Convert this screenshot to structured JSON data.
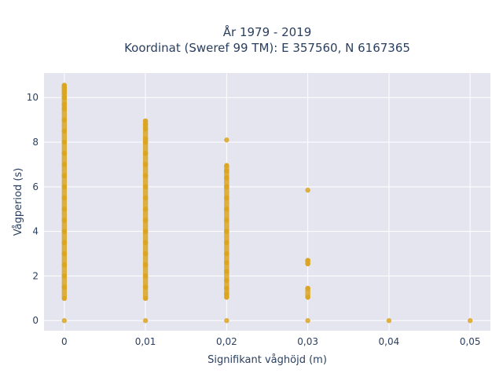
{
  "chart_data": {
    "type": "scatter",
    "title": "År 1979 - 2019",
    "subtitle": "Koordinat (Sweref 99 TM): E 357560, N 6167365",
    "xlabel": "Signifikant våghöjd (m)",
    "ylabel": "Vågperiod (s)",
    "xlim": [
      -0.0025,
      0.0525
    ],
    "ylim": [
      -0.45,
      11.1
    ],
    "x_ticks": [
      0,
      0.01,
      0.02,
      0.03,
      0.04,
      0.05
    ],
    "x_tick_labels": [
      "0",
      "0,01",
      "0,02",
      "0,03",
      "0,04",
      "0,05"
    ],
    "y_ticks": [
      0,
      2,
      4,
      6,
      8,
      10
    ],
    "y_tick_labels": [
      "0",
      "2",
      "4",
      "6",
      "8",
      "10"
    ],
    "grid": true,
    "marker_color": "#DAA520",
    "plot_background": "#E5E5F0",
    "series": [
      {
        "points": [
          {
            "x": 0,
            "y": 0.0
          },
          {
            "x": 0,
            "y": 1.0
          },
          {
            "x": 0,
            "y": 1.5
          },
          {
            "x": 0,
            "y": 2.0
          },
          {
            "x": 0,
            "y": 2.5
          },
          {
            "x": 0,
            "y": 3.0
          },
          {
            "x": 0,
            "y": 3.5
          },
          {
            "x": 0,
            "y": 4.0
          },
          {
            "x": 0,
            "y": 4.5
          },
          {
            "x": 0,
            "y": 5.0
          },
          {
            "x": 0,
            "y": 5.5
          },
          {
            "x": 0,
            "y": 6.0
          },
          {
            "x": 0,
            "y": 6.5
          },
          {
            "x": 0,
            "y": 7.0
          },
          {
            "x": 0,
            "y": 7.5
          },
          {
            "x": 0,
            "y": 8.0
          },
          {
            "x": 0,
            "y": 8.5
          },
          {
            "x": 0,
            "y": 9.0
          },
          {
            "x": 0,
            "y": 9.5
          },
          {
            "x": 0,
            "y": 9.7
          },
          {
            "x": 0,
            "y": 10.0
          },
          {
            "x": 0,
            "y": 10.2
          },
          {
            "x": 0,
            "y": 10.35
          },
          {
            "x": 0,
            "y": 10.45
          },
          {
            "x": 0,
            "y": 10.55
          },
          {
            "x": 0.01,
            "y": 0.0
          },
          {
            "x": 0.01,
            "y": 1.0
          },
          {
            "x": 0.01,
            "y": 1.5
          },
          {
            "x": 0.01,
            "y": 2.0
          },
          {
            "x": 0.01,
            "y": 2.5
          },
          {
            "x": 0.01,
            "y": 3.0
          },
          {
            "x": 0.01,
            "y": 3.5
          },
          {
            "x": 0.01,
            "y": 4.0
          },
          {
            "x": 0.01,
            "y": 4.5
          },
          {
            "x": 0.01,
            "y": 5.0
          },
          {
            "x": 0.01,
            "y": 5.5
          },
          {
            "x": 0.01,
            "y": 6.0
          },
          {
            "x": 0.01,
            "y": 6.5
          },
          {
            "x": 0.01,
            "y": 7.0
          },
          {
            "x": 0.01,
            "y": 7.5
          },
          {
            "x": 0.01,
            "y": 8.0
          },
          {
            "x": 0.01,
            "y": 8.15
          },
          {
            "x": 0.01,
            "y": 8.6
          },
          {
            "x": 0.01,
            "y": 8.8
          },
          {
            "x": 0.01,
            "y": 8.95
          },
          {
            "x": 0.02,
            "y": 0.0
          },
          {
            "x": 0.02,
            "y": 1.05
          },
          {
            "x": 0.02,
            "y": 1.2
          },
          {
            "x": 0.02,
            "y": 1.45
          },
          {
            "x": 0.02,
            "y": 1.8
          },
          {
            "x": 0.02,
            "y": 2.2
          },
          {
            "x": 0.02,
            "y": 2.6
          },
          {
            "x": 0.02,
            "y": 3.0
          },
          {
            "x": 0.02,
            "y": 3.5
          },
          {
            "x": 0.02,
            "y": 4.0
          },
          {
            "x": 0.02,
            "y": 4.5
          },
          {
            "x": 0.02,
            "y": 5.0
          },
          {
            "x": 0.02,
            "y": 5.5
          },
          {
            "x": 0.02,
            "y": 6.0
          },
          {
            "x": 0.02,
            "y": 6.4
          },
          {
            "x": 0.02,
            "y": 6.7
          },
          {
            "x": 0.02,
            "y": 6.95
          },
          {
            "x": 0.02,
            "y": 8.1
          },
          {
            "x": 0.03,
            "y": 0.0
          },
          {
            "x": 0.03,
            "y": 1.05
          },
          {
            "x": 0.03,
            "y": 1.45
          },
          {
            "x": 0.03,
            "y": 2.55
          },
          {
            "x": 0.03,
            "y": 2.7
          },
          {
            "x": 0.03,
            "y": 5.85
          },
          {
            "x": 0.04,
            "y": 0.0
          },
          {
            "x": 0.05,
            "y": 0.0
          }
        ]
      }
    ]
  }
}
